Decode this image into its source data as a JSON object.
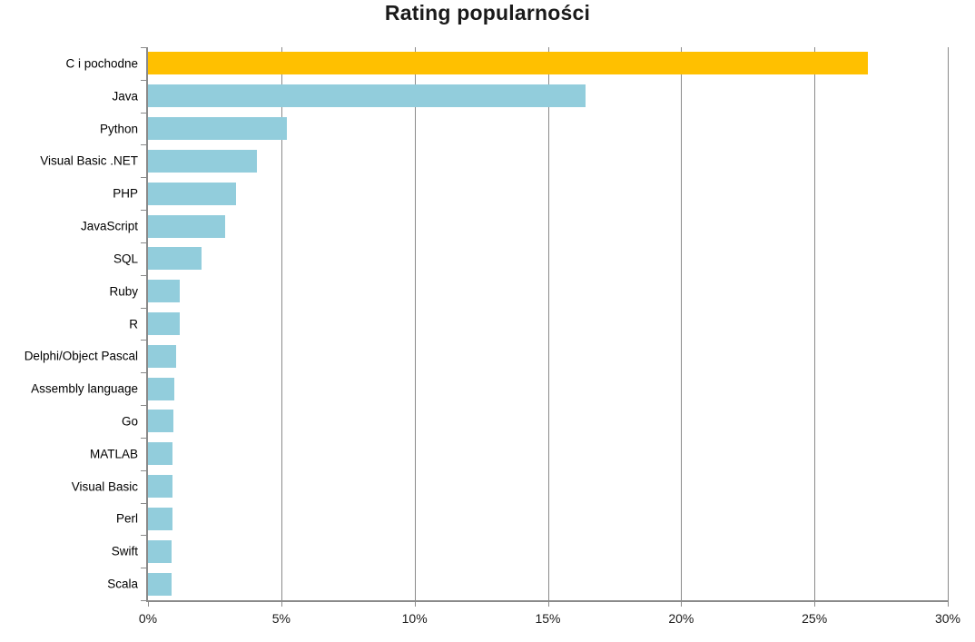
{
  "chart_data": {
    "type": "bar",
    "orientation": "horizontal",
    "title": "Rating popularności",
    "categories": [
      "C i pochodne",
      "Java",
      "Python",
      "Visual Basic .NET",
      "PHP",
      "JavaScript",
      "SQL",
      "Ruby",
      "R",
      "Delphi/Object Pascal",
      "Assembly language",
      "Go",
      "MATLAB",
      "Visual Basic",
      "Perl",
      "Swift",
      "Scala"
    ],
    "values": [
      27.0,
      16.4,
      5.2,
      4.1,
      3.3,
      2.9,
      2.0,
      1.2,
      1.2,
      1.05,
      1.0,
      0.97,
      0.93,
      0.92,
      0.92,
      0.9,
      0.88
    ],
    "value_unit": "%",
    "highlight_index": 0,
    "colors": {
      "bar": "#92CDDC",
      "highlight": "#FFC000",
      "axis": "#8A8A8A",
      "gridline": "#8A8A8A",
      "label_text": "#000000",
      "title_text": "#1A1A1A"
    },
    "axis": {
      "min": 0,
      "max": 30,
      "step": 5,
      "tick_labels": [
        "0%",
        "5%",
        "10%",
        "15%",
        "20%",
        "25%",
        "30%"
      ]
    },
    "grid": true,
    "legend": false
  }
}
